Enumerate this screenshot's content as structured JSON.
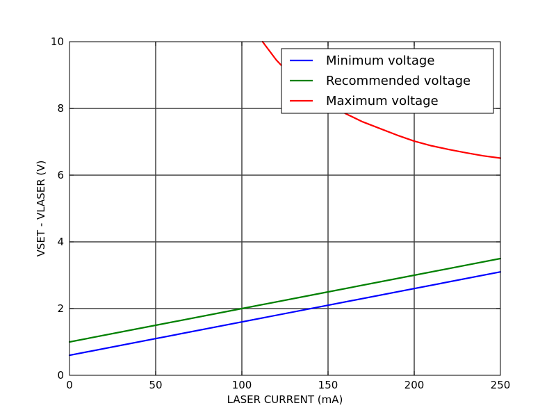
{
  "chart_data": {
    "type": "line",
    "title": "",
    "xlabel": "LASER CURRENT (mA)",
    "ylabel": "VSET - VLASER (V)",
    "xlim": [
      0,
      250
    ],
    "ylim": [
      0,
      10
    ],
    "x_ticks": [
      0,
      50,
      100,
      150,
      200,
      250
    ],
    "y_ticks": [
      0,
      2,
      4,
      6,
      8,
      10
    ],
    "grid": true,
    "legend_position": "top-right",
    "series": [
      {
        "name": "Minimum voltage",
        "color": "#0000ff",
        "x": [
          0,
          50,
          100,
          150,
          200,
          250
        ],
        "y": [
          0.6,
          1.1,
          1.6,
          2.1,
          2.6,
          3.1
        ]
      },
      {
        "name": "Recommended voltage",
        "color": "#008000",
        "x": [
          0,
          50,
          100,
          150,
          200,
          250
        ],
        "y": [
          1.0,
          1.5,
          2.0,
          2.5,
          3.0,
          3.5
        ]
      },
      {
        "name": "Maximum voltage",
        "color": "#ff0000",
        "x": [
          112,
          120,
          130,
          140,
          150,
          160,
          170,
          180,
          190,
          200,
          210,
          220,
          230,
          240,
          250
        ],
        "y": [
          10.0,
          9.45,
          8.9,
          8.5,
          8.15,
          7.85,
          7.6,
          7.4,
          7.2,
          7.02,
          6.88,
          6.77,
          6.67,
          6.58,
          6.51
        ]
      }
    ]
  }
}
